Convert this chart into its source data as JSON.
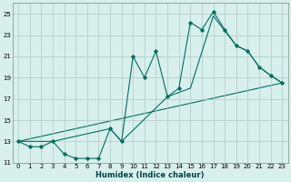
{
  "xlabel": "Humidex (Indice chaleur)",
  "bg_color": "#d8f0ec",
  "grid_color": "#b0c8c4",
  "line_color": "#007060",
  "xlim": [
    -0.5,
    23.5
  ],
  "ylim": [
    11,
    26
  ],
  "xticks": [
    0,
    1,
    2,
    3,
    4,
    5,
    6,
    7,
    8,
    9,
    10,
    11,
    12,
    13,
    14,
    15,
    16,
    17,
    18,
    19,
    20,
    21,
    22,
    23
  ],
  "yticks": [
    11,
    13,
    15,
    17,
    19,
    21,
    23,
    25
  ],
  "line1_x": [
    0,
    1,
    2,
    3,
    4,
    5,
    6,
    7,
    8,
    9,
    10,
    11,
    12,
    13,
    14,
    15,
    16,
    17,
    18,
    19,
    20,
    21,
    22,
    23
  ],
  "line1_y": [
    13.0,
    12.5,
    12.5,
    13.0,
    11.8,
    11.4,
    11.4,
    11.4,
    14.2,
    13.0,
    21.0,
    19.0,
    21.5,
    17.2,
    18.0,
    24.2,
    23.5,
    25.2,
    23.5,
    22.0,
    21.5,
    20.0,
    19.2,
    18.5
  ],
  "line2_x": [
    0,
    3,
    8,
    9,
    13,
    15,
    17,
    19,
    20,
    21,
    22,
    23
  ],
  "line2_y": [
    13.0,
    13.0,
    14.2,
    13.0,
    17.2,
    18.0,
    24.8,
    22.0,
    21.5,
    20.0,
    19.2,
    18.5
  ],
  "line3_x": [
    0,
    23
  ],
  "line3_y": [
    13.0,
    18.5
  ]
}
